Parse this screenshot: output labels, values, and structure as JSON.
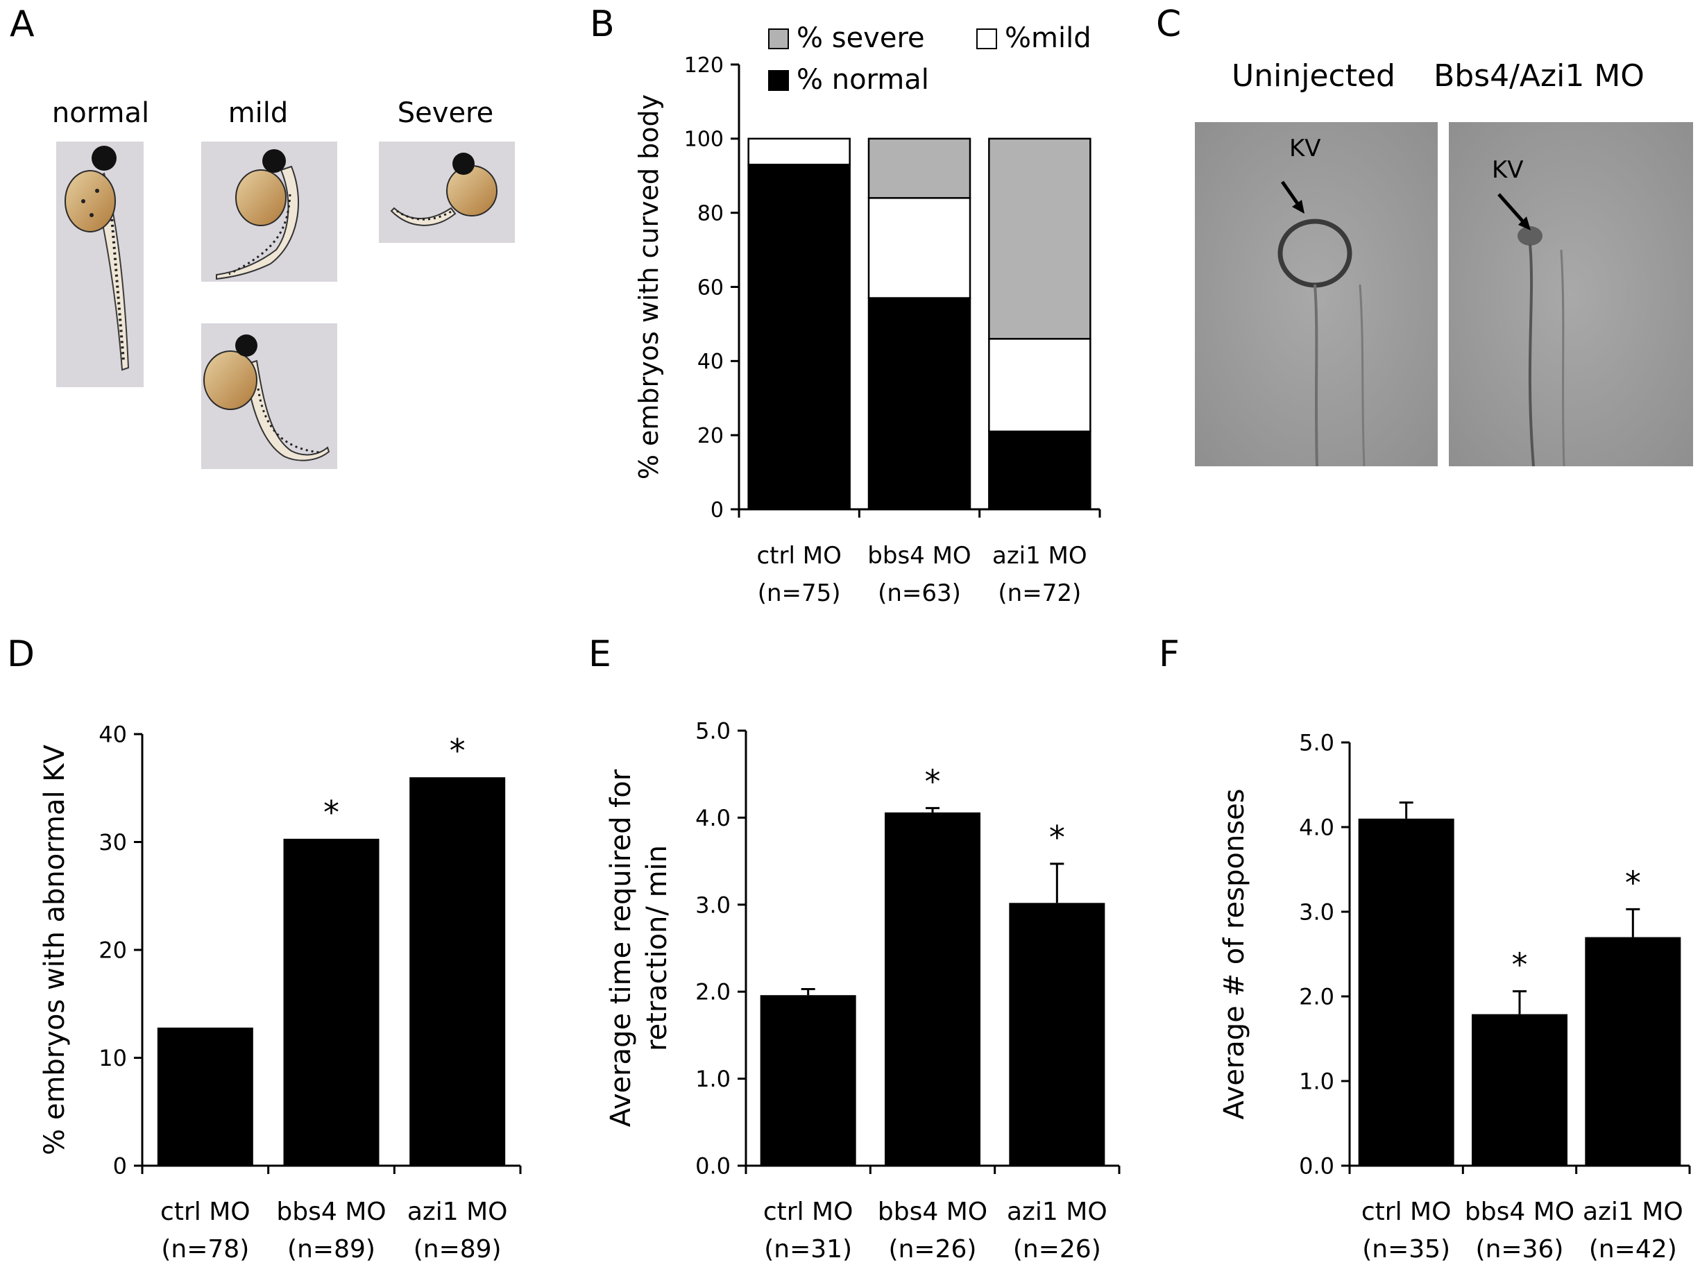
{
  "panels": {
    "A": {
      "letter": "A",
      "labels": {
        "normal": "normal",
        "mild": "mild",
        "severe": "Severe"
      }
    },
    "C": {
      "letter": "C",
      "uninjected": "Uninjected",
      "morphant": "Bbs4/Azi1 MO",
      "kv_left": "KV",
      "kv_right": "KV"
    }
  },
  "colors": {
    "normal": "#000000",
    "mild": "#ffffff",
    "severe": "#b2b2b2",
    "bar": "#000000"
  },
  "icons": {
    "embryo": "zebrafish-embryo-icon",
    "arrow": "arrow-icon"
  },
  "chart_data": [
    {
      "id": "B",
      "letter": "B",
      "type": "bar",
      "stacked": true,
      "categories": [
        "ctrl MO",
        "bbs4 MO",
        "azi1 MO"
      ],
      "n_labels": [
        "(n=75)",
        "(n=63)",
        "(n=72)"
      ],
      "ylabel": "% embryos with curved body",
      "ylim": [
        0,
        120
      ],
      "yticks": [
        0,
        20,
        40,
        60,
        80,
        100,
        120
      ],
      "tick_decimals": 0,
      "legend": "top",
      "series": [
        {
          "name": "% normal",
          "key": "normal",
          "values": [
            93,
            57,
            21
          ]
        },
        {
          "name": "%mild",
          "key": "mild",
          "values": [
            7,
            27,
            25
          ]
        },
        {
          "name": "% severe",
          "key": "severe",
          "values": [
            0,
            16,
            54
          ]
        }
      ]
    },
    {
      "id": "D",
      "letter": "D",
      "type": "bar",
      "categories": [
        "ctrl MO",
        "bbs4 MO",
        "azi1 MO"
      ],
      "n_labels": [
        "(n=78)",
        "(n=89)",
        "(n=89)"
      ],
      "ylabel": "% embryos with abnormal KV",
      "ylim": [
        0,
        40
      ],
      "yticks": [
        0,
        10,
        20,
        30,
        40
      ],
      "tick_decimals": 0,
      "values": [
        12.8,
        30.3,
        36.0
      ],
      "errors": [
        0,
        0,
        0
      ],
      "significance": [
        "",
        "*",
        "*"
      ]
    },
    {
      "id": "E",
      "letter": "E",
      "type": "bar",
      "categories": [
        "ctrl MO",
        "bbs4 MO",
        "azi1 MO"
      ],
      "n_labels": [
        "(n=31)",
        "(n=26)",
        "(n=26)"
      ],
      "ylabel": [
        "Average time required for",
        "retraction/ min"
      ],
      "ylim": [
        0,
        5
      ],
      "yticks": [
        0,
        1,
        2,
        3,
        4,
        5
      ],
      "tick_decimals": 1,
      "values": [
        1.96,
        4.06,
        3.02
      ],
      "errors": [
        0.07,
        0.05,
        0.45
      ],
      "significance": [
        "",
        "*",
        "*"
      ]
    },
    {
      "id": "F",
      "letter": "F",
      "type": "bar",
      "categories": [
        "ctrl MO",
        "bbs4 MO",
        "azi1 MO"
      ],
      "n_labels": [
        "(n=35)",
        "(n=36)",
        "(n=42)"
      ],
      "ylabel": "Average # of responses",
      "ylim": [
        0,
        5
      ],
      "yticks": [
        0,
        1,
        2,
        3,
        4,
        5
      ],
      "tick_decimals": 1,
      "values": [
        4.1,
        1.79,
        2.7
      ],
      "errors": [
        0.19,
        0.27,
        0.33
      ],
      "significance": [
        "",
        "*",
        "*"
      ]
    }
  ]
}
